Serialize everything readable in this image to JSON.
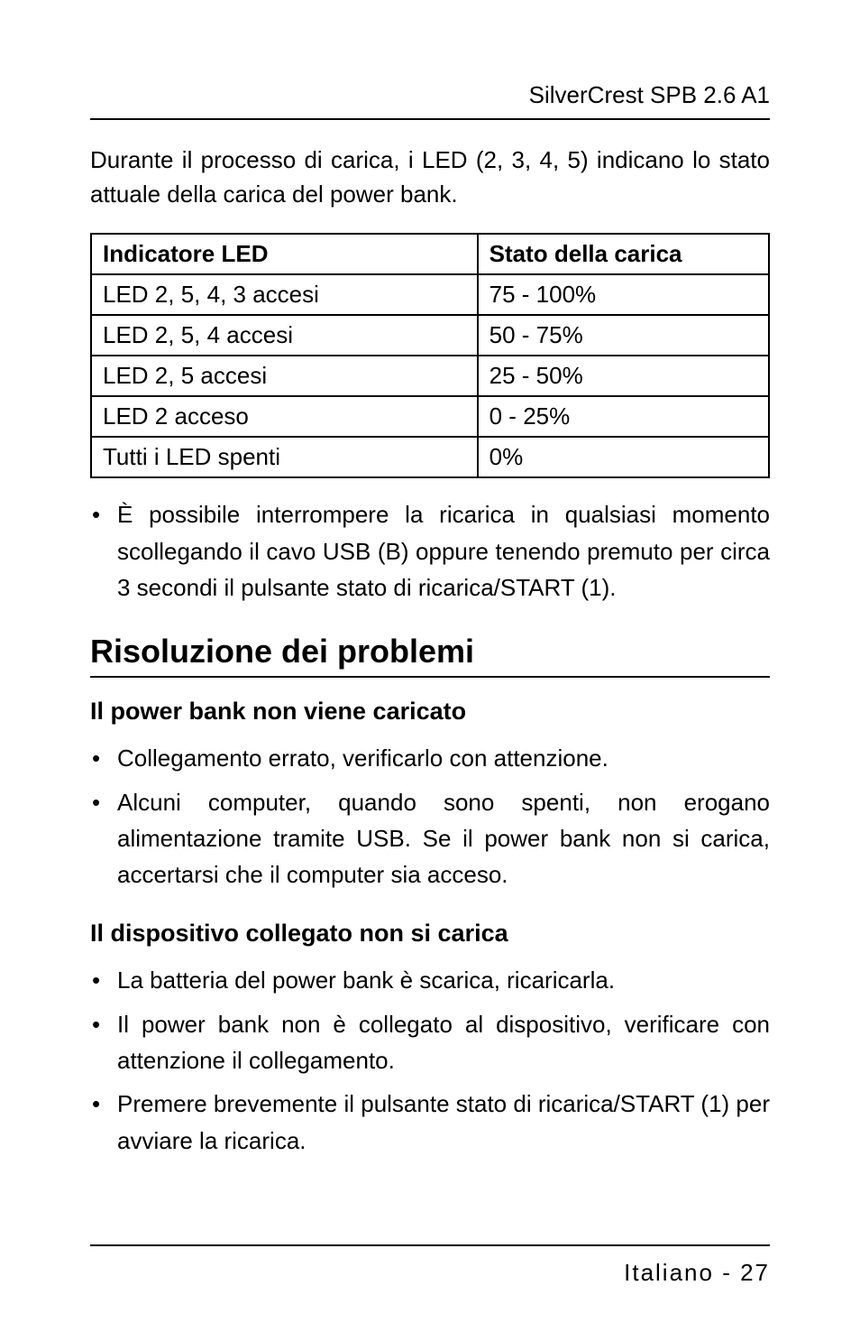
{
  "header": {
    "text": "SilverCrest SPB 2.6 A1"
  },
  "intro": {
    "text": "Durante il processo di carica, i LED (2, 3, 4, 5) indicano lo stato attuale della carica del power bank."
  },
  "table": {
    "headers": {
      "indicator": "Indicatore LED",
      "state": "Stato della carica"
    },
    "rows": [
      {
        "indicator": "LED 2, 5, 4, 3 accesi",
        "state": "75 - 100%"
      },
      {
        "indicator": "LED 2, 5, 4 accesi",
        "state": "50 - 75%"
      },
      {
        "indicator": "LED 2, 5 accesi",
        "state": "25 - 50%"
      },
      {
        "indicator": "LED 2 acceso",
        "state": "0 - 25%"
      },
      {
        "indicator": "Tutti i LED spenti",
        "state": "0%"
      }
    ]
  },
  "bullet_after_table": {
    "text": "È possibile interrompere la ricarica in qualsiasi momento scollegando il cavo USB (B) oppure tenendo premuto per circa 3 secondi il pulsante stato di ricarica/START (1)."
  },
  "section_title": {
    "text": "Risoluzione dei problemi"
  },
  "sub1": {
    "title": "Il power bank non viene caricato",
    "items": [
      "Collegamento errato, verificarlo con attenzione.",
      "Alcuni computer, quando sono spenti, non erogano alimentazione tramite USB. Se il power bank non si carica, accertarsi che il computer sia acceso."
    ]
  },
  "sub2": {
    "title": "Il dispositivo collegato non si carica",
    "items": [
      "La batteria del power bank è scarica, ricaricarla.",
      "Il power bank non è collegato al dispositivo, verificare con attenzione il collegamento.",
      "Premere brevemente il pulsante stato di ricarica/START (1) per avviare la ricarica."
    ]
  },
  "footer": {
    "text": "Italiano - 27"
  }
}
